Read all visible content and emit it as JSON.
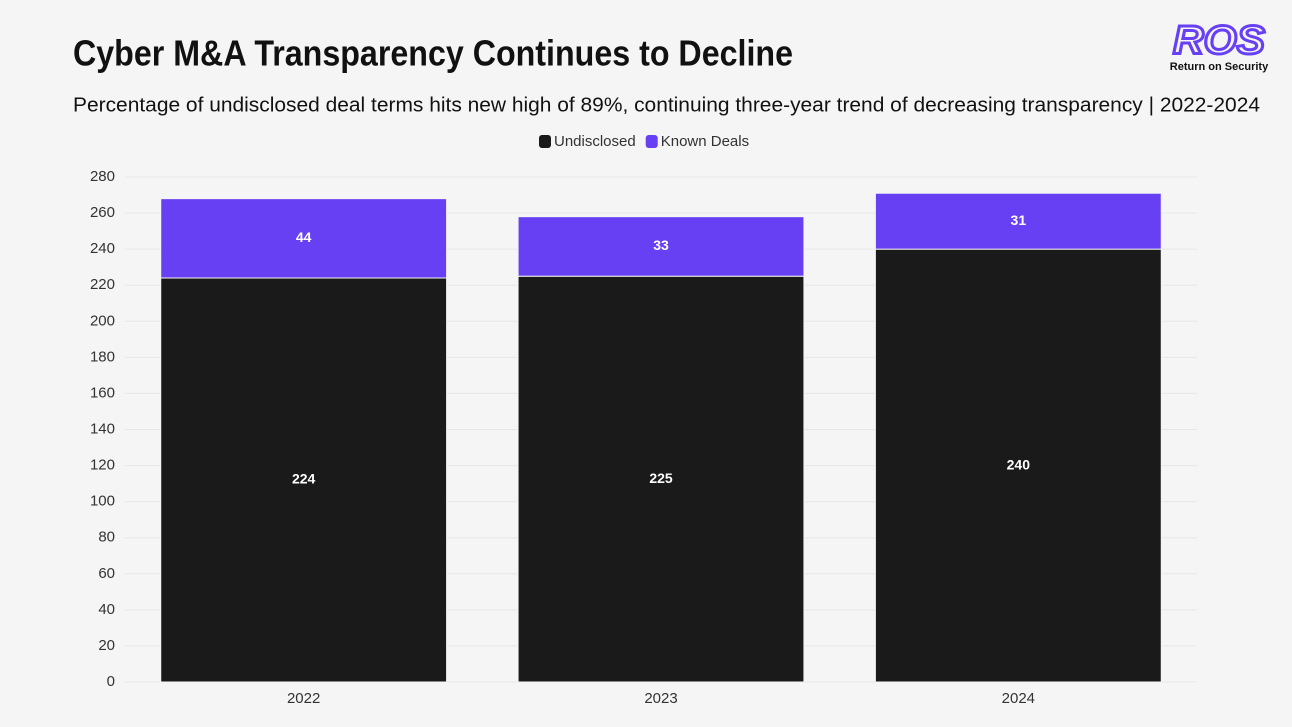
{
  "chart_data": {
    "type": "stacked_bar",
    "title": "Cyber M&A Transparency Continues to Decline",
    "subtitle": "Percentage of undisclosed deal terms hits new high of 89%, continuing three-year trend of decreasing transparency | 2022-2024",
    "categories": [
      "2022",
      "2023",
      "2024"
    ],
    "series": [
      {
        "name": "Undisclosed",
        "color": "#1a1a1a",
        "values": [
          224,
          225,
          240
        ]
      },
      {
        "name": "Known Deals",
        "color": "#6740f4",
        "values": [
          44,
          33,
          31
        ]
      }
    ],
    "ylim": [
      0,
      280
    ],
    "yticks": [
      0,
      20,
      40,
      60,
      80,
      100,
      120,
      140,
      160,
      180,
      200,
      220,
      240,
      260,
      280
    ],
    "grid": true,
    "legend": "top"
  },
  "logo": {
    "mark": "ROS",
    "tagline": "Return on Security"
  }
}
